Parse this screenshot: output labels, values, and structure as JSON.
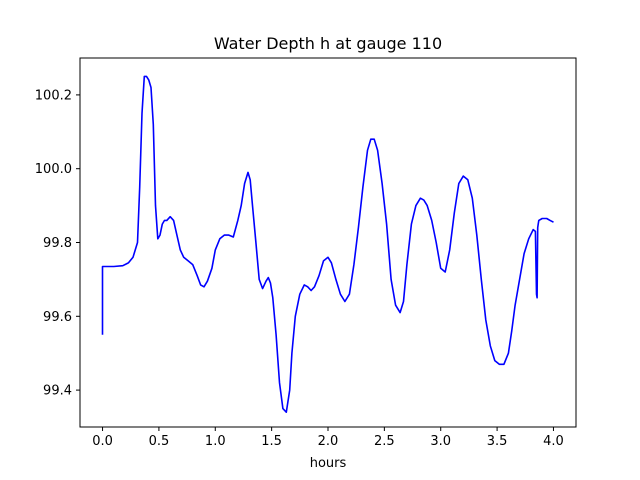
{
  "chart_data": {
    "type": "line",
    "title": "Water Depth h at gauge 110",
    "xlabel": "hours",
    "ylabel": "",
    "xlim": [
      -0.2,
      4.2
    ],
    "ylim": [
      99.3,
      100.3
    ],
    "xticks": [
      0.0,
      0.5,
      1.0,
      1.5,
      2.0,
      2.5,
      3.0,
      3.5,
      4.0
    ],
    "xtick_labels": [
      "0.0",
      "0.5",
      "1.0",
      "1.5",
      "2.0",
      "2.5",
      "3.0",
      "3.5",
      "4.0"
    ],
    "yticks": [
      99.4,
      99.6,
      99.8,
      100.0,
      100.2
    ],
    "ytick_labels": [
      "99.4",
      "99.6",
      "99.8",
      "100.0",
      "100.2"
    ],
    "grid": false,
    "legend": "none",
    "series": [
      {
        "color": "#0000ff",
        "x": [
          0.0,
          0.0,
          0.02,
          0.1,
          0.18,
          0.23,
          0.27,
          0.31,
          0.33,
          0.35,
          0.37,
          0.39,
          0.41,
          0.43,
          0.45,
          0.47,
          0.49,
          0.51,
          0.53,
          0.55,
          0.57,
          0.6,
          0.63,
          0.66,
          0.69,
          0.72,
          0.76,
          0.8,
          0.84,
          0.87,
          0.9,
          0.93,
          0.97,
          1.0,
          1.04,
          1.08,
          1.12,
          1.16,
          1.2,
          1.23,
          1.26,
          1.29,
          1.31,
          1.33,
          1.36,
          1.39,
          1.42,
          1.45,
          1.47,
          1.49,
          1.51,
          1.54,
          1.57,
          1.6,
          1.63,
          1.66,
          1.68,
          1.71,
          1.75,
          1.79,
          1.82,
          1.85,
          1.88,
          1.92,
          1.96,
          2.0,
          2.03,
          2.07,
          2.11,
          2.15,
          2.19,
          2.23,
          2.27,
          2.31,
          2.35,
          2.38,
          2.41,
          2.44,
          2.48,
          2.52,
          2.56,
          2.6,
          2.64,
          2.67,
          2.7,
          2.74,
          2.78,
          2.82,
          2.85,
          2.88,
          2.92,
          2.96,
          3.0,
          3.04,
          3.08,
          3.12,
          3.16,
          3.2,
          3.24,
          3.28,
          3.32,
          3.36,
          3.4,
          3.44,
          3.48,
          3.52,
          3.56,
          3.6,
          3.63,
          3.66,
          3.7,
          3.74,
          3.78,
          3.82,
          3.84,
          3.85,
          3.855,
          3.86,
          3.865,
          3.87,
          3.9,
          3.94,
          3.97,
          4.0
        ],
        "y": [
          99.55,
          99.735,
          99.735,
          99.735,
          99.737,
          99.745,
          99.76,
          99.8,
          99.95,
          100.15,
          100.25,
          100.25,
          100.24,
          100.22,
          100.12,
          99.9,
          99.81,
          99.82,
          99.85,
          99.86,
          99.86,
          99.87,
          99.86,
          99.82,
          99.78,
          99.76,
          99.75,
          99.74,
          99.71,
          99.685,
          99.68,
          99.695,
          99.73,
          99.78,
          99.81,
          99.82,
          99.82,
          99.815,
          99.86,
          99.9,
          99.96,
          99.99,
          99.97,
          99.9,
          99.8,
          99.7,
          99.675,
          99.695,
          99.705,
          99.69,
          99.65,
          99.55,
          99.42,
          99.35,
          99.34,
          99.4,
          99.5,
          99.6,
          99.66,
          99.685,
          99.68,
          99.67,
          99.68,
          99.71,
          99.75,
          99.76,
          99.745,
          99.7,
          99.66,
          99.64,
          99.66,
          99.74,
          99.84,
          99.95,
          100.05,
          100.08,
          100.08,
          100.05,
          99.96,
          99.85,
          99.7,
          99.63,
          99.61,
          99.64,
          99.74,
          99.85,
          99.9,
          99.92,
          99.915,
          99.9,
          99.86,
          99.8,
          99.73,
          99.72,
          99.78,
          99.88,
          99.96,
          99.98,
          99.97,
          99.92,
          99.82,
          99.7,
          99.59,
          99.52,
          99.48,
          99.47,
          99.47,
          99.5,
          99.56,
          99.63,
          99.7,
          99.77,
          99.81,
          99.835,
          99.83,
          99.66,
          99.65,
          99.84,
          99.85,
          99.86,
          99.865,
          99.865,
          99.86,
          99.855
        ]
      }
    ]
  }
}
